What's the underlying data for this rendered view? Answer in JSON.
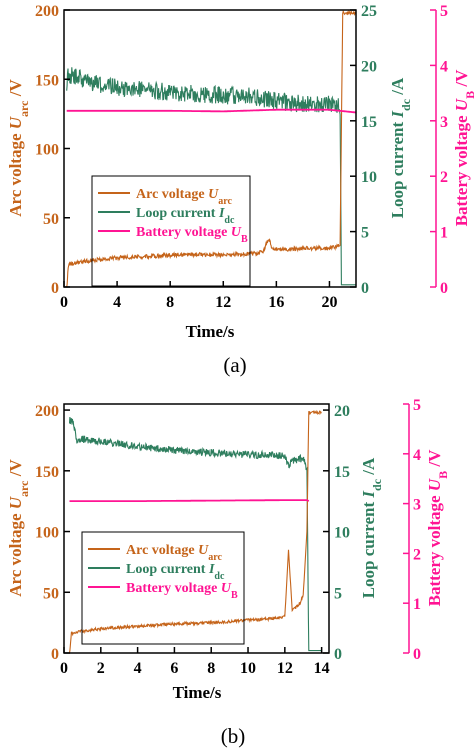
{
  "colors": {
    "arc": "#c5641a",
    "loop": "#2e7e5e",
    "battery": "#ff1493",
    "axis": "#000000"
  },
  "chart_data": [
    {
      "type": "line",
      "caption": "(a)",
      "xlabel": "Time/s",
      "xlim": [
        0,
        22
      ],
      "xticks": [
        0,
        4,
        8,
        12,
        16,
        20
      ],
      "xtick_labels": [
        "0",
        "4",
        "8",
        "12",
        "16",
        "20"
      ],
      "left_axis": {
        "ylabel_main": "Arc voltage ",
        "ylabel_sym": "U",
        "ylabel_sub": "arc",
        "ylabel_unit": " /V",
        "ylim": [
          0,
          200
        ],
        "ticks": [
          0,
          50,
          100,
          150,
          200
        ],
        "tick_labels": [
          "0",
          "50",
          "100",
          "150",
          "200"
        ]
      },
      "right_axis_1": {
        "ylabel_main": "Loop current ",
        "ylabel_sym": "I",
        "ylabel_sub": "dc",
        "ylabel_unit": " /A",
        "ylim": [
          0,
          25
        ],
        "ticks": [
          0,
          5,
          10,
          15,
          20,
          25
        ],
        "tick_labels": [
          "0",
          "5",
          "10",
          "15",
          "20",
          "25"
        ]
      },
      "right_axis_2": {
        "ylabel_main": "Battery voltage ",
        "ylabel_sym": "U",
        "ylabel_sub": "B",
        "ylabel_unit": " /V",
        "ylim": [
          0,
          5
        ],
        "ticks": [
          0,
          1,
          2,
          3,
          4,
          5
        ],
        "tick_labels": [
          "0",
          "1",
          "2",
          "3",
          "4",
          "5"
        ]
      },
      "legend": [
        {
          "label": "Arc voltage ",
          "sym": "U",
          "sub": "arc",
          "series": "arc"
        },
        {
          "label": "Loop current ",
          "sym": "I",
          "sub": "dc",
          "series": "loop"
        },
        {
          "label": "Battery voltage ",
          "sym": "U",
          "sub": "B",
          "series": "battery"
        }
      ],
      "series": [
        {
          "key": "arc",
          "axis": "left",
          "noise": 1.5,
          "x": [
            0.2,
            0.35,
            0.6,
            1,
            2,
            4,
            6,
            8,
            10,
            12,
            14,
            15,
            15.4,
            15.7,
            16.2,
            18,
            20,
            20.5,
            20.8,
            21.0,
            22
          ],
          "y": [
            0,
            16,
            17,
            18,
            19,
            21,
            22,
            23,
            23.5,
            23,
            24,
            25,
            35,
            28,
            27,
            28,
            28,
            29,
            30,
            198,
            198
          ]
        },
        {
          "key": "loop",
          "axis": "right_axis_1",
          "noise": 0.8,
          "x": [
            0.2,
            0.3,
            2,
            4,
            8,
            12,
            14,
            16,
            18,
            20,
            20.5,
            20.8,
            20.9,
            22
          ],
          "y": [
            18.5,
            19.2,
            18.5,
            18.0,
            17.6,
            17.3,
            17.2,
            16.8,
            16.5,
            16.5,
            16.3,
            16.2,
            0.2,
            0.2
          ]
        },
        {
          "key": "battery",
          "axis": "right_axis_2",
          "x": [
            0.2,
            4,
            8,
            12,
            16,
            20,
            22
          ],
          "y": [
            3.18,
            3.18,
            3.18,
            3.17,
            3.2,
            3.2,
            3.15
          ]
        }
      ]
    },
    {
      "type": "line",
      "caption": "(b)",
      "xlabel": "Time/s",
      "xlim": [
        0,
        14.4
      ],
      "xticks": [
        0,
        2,
        4,
        6,
        8,
        10,
        12,
        14
      ],
      "xtick_labels": [
        "0",
        "2",
        "4",
        "6",
        "8",
        "10",
        "12",
        "14"
      ],
      "left_axis": {
        "ylabel_main": "Arc voltage ",
        "ylabel_sym": "U",
        "ylabel_sub": "arc",
        "ylabel_unit": " /V",
        "ylim": [
          0,
          205
        ],
        "ticks": [
          0,
          50,
          100,
          150,
          200
        ],
        "tick_labels": [
          "0",
          "50",
          "100",
          "150",
          "200"
        ]
      },
      "right_axis_1": {
        "ylabel_main": "Loop current ",
        "ylabel_sym": "I",
        "ylabel_sub": "dc",
        "ylabel_unit": " /A",
        "ylim": [
          0,
          20.5
        ],
        "ticks": [
          0,
          5,
          10,
          15,
          20
        ],
        "tick_labels": [
          "0",
          "5",
          "10",
          "15",
          "20"
        ]
      },
      "right_axis_2": {
        "ylabel_main": "Battery voltage ",
        "ylabel_sym": "U",
        "ylabel_sub": "B",
        "ylabel_unit": " /V",
        "ylim": [
          0,
          5
        ],
        "ticks": [
          0,
          1,
          2,
          3,
          4,
          5
        ],
        "tick_labels": [
          "0",
          "1",
          "2",
          "3",
          "4",
          "5"
        ]
      },
      "legend": [
        {
          "label": "Arc voltage ",
          "sym": "U",
          "sub": "arc",
          "series": "arc"
        },
        {
          "label": "Loop current ",
          "sym": "I",
          "sub": "dc",
          "series": "loop"
        },
        {
          "label": "Battery voltage ",
          "sym": "U",
          "sub": "B",
          "series": "battery"
        }
      ],
      "series": [
        {
          "key": "arc",
          "axis": "left",
          "noise": 1.2,
          "x": [
            0.3,
            0.4,
            1,
            2,
            4,
            6,
            8,
            10,
            11,
            12,
            12.2,
            12.4,
            12.8,
            13.0,
            13.2,
            13.3,
            14
          ],
          "y": [
            0,
            16,
            18,
            20,
            22,
            24,
            25,
            27,
            28,
            30,
            85,
            35,
            40,
            48,
            100,
            198,
            198
          ]
        },
        {
          "key": "loop",
          "axis": "right_axis_1",
          "noise": 0.3,
          "x": [
            0.3,
            0.5,
            0.7,
            1,
            2,
            4,
            6,
            8,
            10,
            11,
            12,
            12.2,
            12.4,
            12.8,
            13.0,
            13.2,
            13.3,
            14
          ],
          "y": [
            19.2,
            19.0,
            17.4,
            17.6,
            17.4,
            17.0,
            16.7,
            16.5,
            16.3,
            16.3,
            16.2,
            15.4,
            15.8,
            16.0,
            16.0,
            15.0,
            0.2,
            0.2
          ]
        },
        {
          "key": "battery",
          "axis": "right_axis_2",
          "x": [
            0.3,
            4,
            8,
            12,
            13.2,
            13.3
          ],
          "y": [
            3.05,
            3.05,
            3.06,
            3.07,
            3.07,
            3.05
          ]
        }
      ]
    }
  ]
}
